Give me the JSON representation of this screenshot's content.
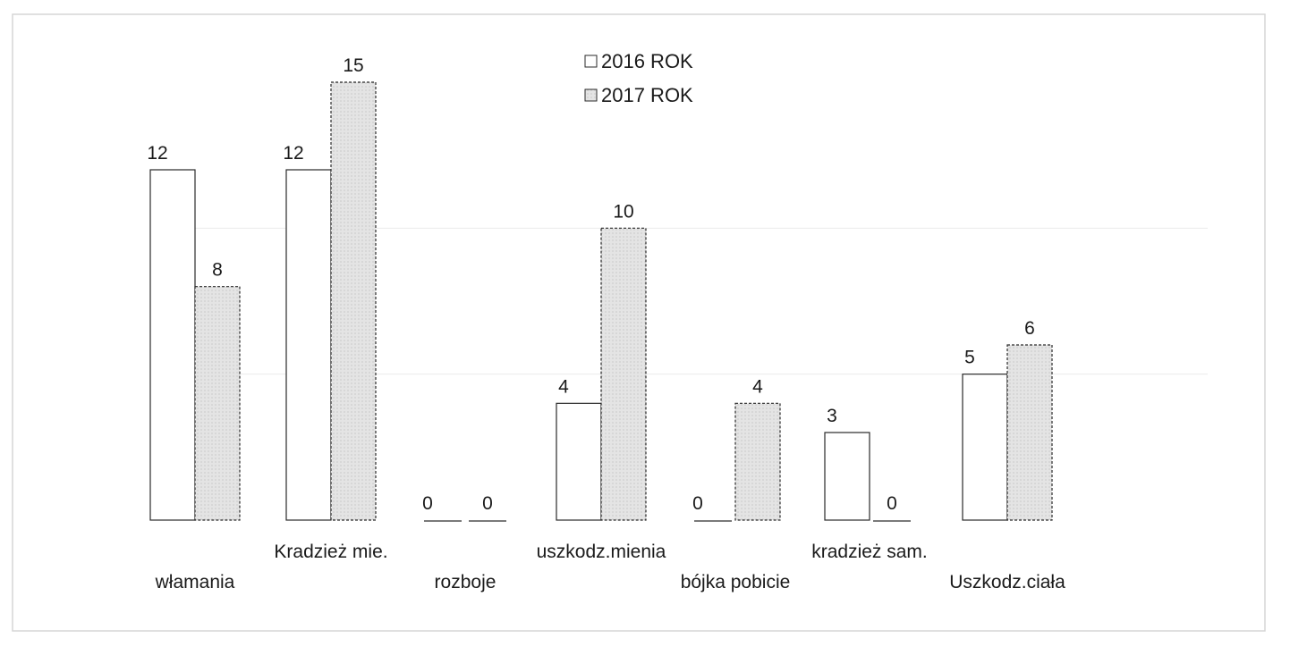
{
  "chart_data": {
    "type": "bar",
    "title": "",
    "xlabel": "",
    "ylabel": "",
    "categories": [
      "włamania",
      "Kradzież mie.",
      "rozboje",
      "uszkodz.mienia",
      "bójka pobicie",
      "kradzież sam.",
      "Uszkodz.ciała"
    ],
    "series": [
      {
        "name": "2016 ROK",
        "values": [
          12,
          12,
          0,
          4,
          0,
          3,
          5
        ],
        "color": "#ffffff"
      },
      {
        "name": "2017 ROK",
        "values": [
          8,
          15,
          0,
          10,
          4,
          0,
          6
        ],
        "color": "#e2e2e2"
      }
    ],
    "ylim": [
      0,
      15
    ],
    "grid": false,
    "legend": "top-center",
    "data_labels": true
  }
}
